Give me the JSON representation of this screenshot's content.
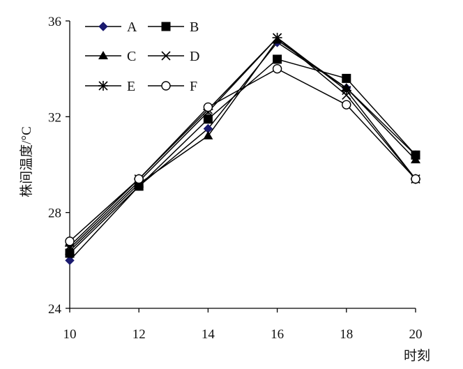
{
  "chart_data": {
    "type": "line",
    "title": "",
    "xlabel": "时刻",
    "ylabel": "株间温度/°C",
    "x": [
      10,
      12,
      14,
      16,
      18,
      20
    ],
    "xticks": [
      10,
      12,
      14,
      16,
      18,
      20
    ],
    "yticks": [
      24,
      28,
      32,
      36
    ],
    "xlim": [
      10,
      20
    ],
    "ylim": [
      24,
      36
    ],
    "grid": false,
    "legend_position": "top-left",
    "series": [
      {
        "name": "A",
        "marker": "diamond",
        "color": "#1a1a6e",
        "values": [
          26.0,
          29.1,
          31.5,
          35.1,
          33.2,
          30.4
        ]
      },
      {
        "name": "B",
        "marker": "square",
        "color": "#111111",
        "values": [
          26.3,
          29.1,
          31.9,
          34.4,
          33.6,
          30.4
        ]
      },
      {
        "name": "C",
        "marker": "triangle",
        "color": "#111111",
        "values": [
          26.4,
          29.2,
          31.2,
          35.2,
          33.2,
          30.2
        ]
      },
      {
        "name": "D",
        "marker": "x",
        "color": "#111111",
        "values": [
          26.5,
          29.3,
          32.2,
          35.3,
          32.9,
          29.4
        ]
      },
      {
        "name": "E",
        "marker": "asterisk",
        "color": "#111111",
        "values": [
          26.6,
          29.4,
          32.3,
          35.3,
          33.1,
          29.4
        ]
      },
      {
        "name": "F",
        "marker": "circle",
        "color": "#111111",
        "values": [
          26.8,
          29.4,
          32.4,
          34.0,
          32.5,
          29.4
        ]
      }
    ]
  }
}
